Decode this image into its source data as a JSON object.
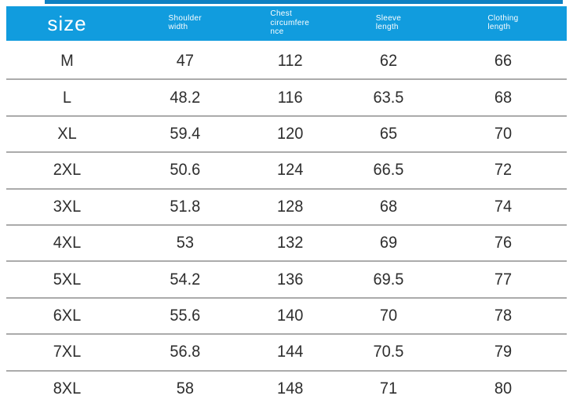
{
  "chart_data": {
    "type": "table",
    "columns": [
      "size",
      "Shoulder width",
      "Chest circumference",
      "Sleeve length",
      "Clothing length"
    ],
    "column_display_labels": [
      "size",
      "Shoulder\nwidth",
      "Chest\ncircumfere\nnce",
      "Sleeve\nlength",
      "Clothing\nlength"
    ],
    "rows": [
      [
        "M",
        "47",
        "112",
        "62",
        "66"
      ],
      [
        "L",
        "48.2",
        "116",
        "63.5",
        "68"
      ],
      [
        "XL",
        "59.4",
        "120",
        "65",
        "70"
      ],
      [
        "2XL",
        "50.6",
        "124",
        "66.5",
        "72"
      ],
      [
        "3XL",
        "51.8",
        "128",
        "68",
        "74"
      ],
      [
        "4XL",
        "53",
        "132",
        "69",
        "76"
      ],
      [
        "5XL",
        "54.2",
        "136",
        "69.5",
        "77"
      ],
      [
        "6XL",
        "55.6",
        "140",
        "70",
        "78"
      ],
      [
        "7XL",
        "56.8",
        "144",
        "70.5",
        "79"
      ],
      [
        "8XL",
        "58",
        "148",
        "71",
        "80"
      ]
    ]
  },
  "colors": {
    "header_bg": "#119cde",
    "top_strip": "#0e80c2",
    "header_text": "#ffffff",
    "cell_text": "#2e2e2e",
    "divider": "#ababab"
  }
}
